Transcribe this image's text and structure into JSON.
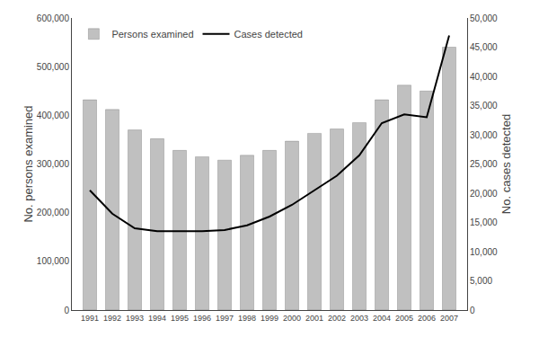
{
  "chart_data": {
    "type": "bar",
    "x": [
      1991,
      1992,
      1993,
      1994,
      1995,
      1996,
      1997,
      1998,
      1999,
      2000,
      2001,
      2002,
      2003,
      2004,
      2005,
      2006,
      2007
    ],
    "series": [
      {
        "name": "Persons examined",
        "type": "bar",
        "color": "#c0c0c0",
        "values": [
          432000,
          412000,
          370000,
          352000,
          328000,
          315000,
          308000,
          318000,
          328000,
          347000,
          363000,
          372000,
          385000,
          432000,
          462000,
          450000,
          540000
        ]
      },
      {
        "name": "Cases detected",
        "type": "line",
        "axis": "y2",
        "color": "#000000",
        "values": [
          20500,
          16500,
          14000,
          13500,
          13500,
          13500,
          13700,
          14500,
          16000,
          18000,
          20500,
          23000,
          26500,
          32000,
          33500,
          33000,
          47000
        ]
      }
    ],
    "ylabel": "No. persons examined",
    "y2label": "No. cases detected",
    "xlim": [
      1990.2,
      2007.8
    ],
    "xticks": [
      1991,
      1992,
      1993,
      1994,
      1995,
      1996,
      1997,
      1998,
      1999,
      2000,
      2001,
      2002,
      2003,
      2004,
      2005,
      2006,
      2007
    ],
    "ylim": [
      0,
      600000
    ],
    "yticks": [
      0,
      {
        "value": 100000,
        "label": "100,000"
      },
      {
        "value": 200000,
        "label": "200,000"
      },
      {
        "value": 300000,
        "label": "300,000"
      },
      {
        "value": 400000,
        "label": "400,000"
      },
      {
        "value": 500000,
        "label": "500,000"
      },
      {
        "value": 600000,
        "label": "600,000"
      }
    ],
    "y2lim": [
      0,
      50000
    ],
    "y2ticks": [
      0,
      {
        "value": 5000,
        "label": "5,000"
      },
      {
        "value": 10000,
        "label": "10,000"
      },
      {
        "value": 15000,
        "label": "15,000"
      },
      {
        "value": 20000,
        "label": "20,000"
      },
      {
        "value": 25000,
        "label": "25,000"
      },
      {
        "value": 30000,
        "label": "30,000"
      },
      {
        "value": 35000,
        "label": "35,000"
      },
      {
        "value": 40000,
        "label": "40,000"
      },
      {
        "value": 45000,
        "label": "45,000"
      },
      {
        "value": 50000,
        "label": "50,000"
      }
    ],
    "grid": false,
    "legend": "upper left"
  }
}
